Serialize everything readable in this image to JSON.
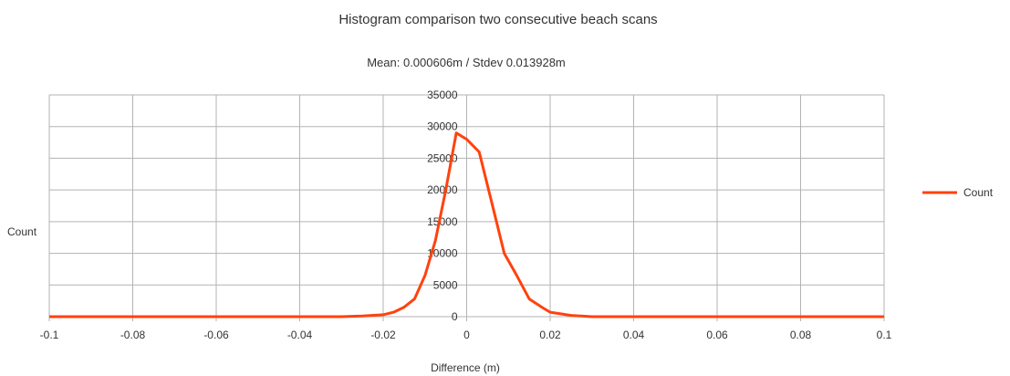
{
  "chart_data": {
    "type": "line",
    "title": "Histogram comparison two consecutive beach scans",
    "subtitle": "Mean: 0.000606m / Stdev 0.013928m",
    "xlabel": "Difference (m)",
    "ylabel": "Count",
    "xlim": [
      -0.1,
      0.1
    ],
    "ylim": [
      0,
      35000
    ],
    "x_ticks": [
      "-0.1",
      "-0.08",
      "-0.06",
      "-0.04",
      "-0.02",
      "0",
      "0.02",
      "0.04",
      "0.06",
      "0.08",
      "0.1"
    ],
    "y_ticks": [
      "35000",
      "30000",
      "25000",
      "20000",
      "15000",
      "10000",
      "5000",
      "0"
    ],
    "grid": true,
    "legend_position": "right",
    "series": [
      {
        "name": "Count",
        "color": "#ff420e",
        "x": [
          -0.1,
          -0.03,
          -0.025,
          -0.02,
          -0.0175,
          -0.015,
          -0.0125,
          -0.01,
          -0.0075,
          -0.005,
          -0.0025,
          0.0,
          0.003,
          0.006,
          0.009,
          0.012,
          0.015,
          0.018,
          0.02,
          0.025,
          0.03,
          0.1
        ],
        "y": [
          0,
          0,
          100,
          300,
          700,
          1500,
          2800,
          6500,
          12000,
          20000,
          29000,
          28000,
          26000,
          18000,
          10000,
          6500,
          2800,
          1500,
          700,
          200,
          0,
          0
        ]
      }
    ]
  }
}
